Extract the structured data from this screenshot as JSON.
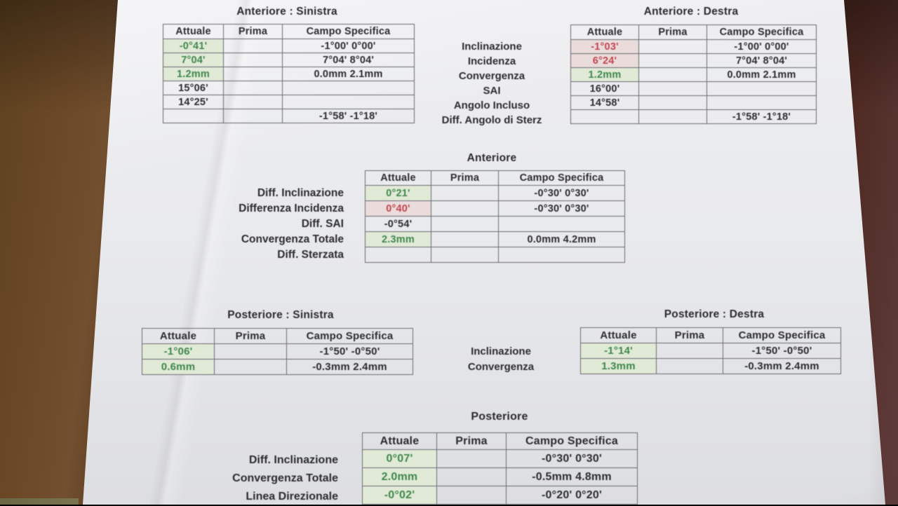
{
  "colors": {
    "good_green": "#40874c",
    "bad_red": "#c2454f",
    "good_cell_bg": "#e0ead7",
    "bad_cell_bg": "#eadcda",
    "ink": "#2c2c30",
    "table_border": "#6a6a70"
  },
  "headers": {
    "attuale": "Attuale",
    "prima": "Prima",
    "campo_specifica": "Campo Specifica"
  },
  "sections": {
    "front_left": {
      "title": "Anteriore : Sinistra",
      "rows": [
        {
          "attuale": "-0°41'",
          "prima": "",
          "campo": "-1°00' 0°00'"
        },
        {
          "attuale": "7°04'",
          "prima": "",
          "campo": "7°04' 8°04'"
        },
        {
          "attuale": "1.2mm",
          "prima": "",
          "campo": "0.0mm 2.1mm"
        },
        {
          "attuale": "15°06'",
          "prima": "",
          "campo": ""
        },
        {
          "attuale": "14°25'",
          "prima": "",
          "campo": ""
        },
        {
          "attuale": "",
          "prima": "",
          "campo": "-1°58' -1°18'"
        }
      ]
    },
    "front_labels": [
      "Inclinazione",
      "Incidenza",
      "Convergenza",
      "SAI",
      "Angolo Incluso",
      "Diff. Angolo di Sterz"
    ],
    "front_right": {
      "title": "Anteriore : Destra",
      "rows": [
        {
          "attuale": "-1°03'",
          "prima": "",
          "campo": "-1°00' 0°00'"
        },
        {
          "attuale": "6°24'",
          "prima": "",
          "campo": "7°04' 8°04'"
        },
        {
          "attuale": "1.2mm",
          "prima": "",
          "campo": "0.0mm 2.1mm"
        },
        {
          "attuale": "16°00'",
          "prima": "",
          "campo": ""
        },
        {
          "attuale": "14°58'",
          "prima": "",
          "campo": ""
        },
        {
          "attuale": "",
          "prima": "",
          "campo": "-1°58' -1°18'"
        }
      ]
    },
    "front_center": {
      "title": "Anteriore",
      "labels": [
        "Diff. Inclinazione",
        "Differenza Incidenza",
        "Diff. SAI",
        "Convergenza Totale",
        "Diff. Sterzata"
      ],
      "rows": [
        {
          "attuale": "0°21'",
          "prima": "",
          "campo": "-0°30' 0°30'"
        },
        {
          "attuale": "0°40'",
          "prima": "",
          "campo": "-0°30' 0°30'"
        },
        {
          "attuale": "-0°54'",
          "prima": "",
          "campo": ""
        },
        {
          "attuale": "2.3mm",
          "prima": "",
          "campo": "0.0mm 4.2mm"
        },
        {
          "attuale": "",
          "prima": "",
          "campo": ""
        }
      ]
    },
    "rear_left": {
      "title": "Posteriore : Sinistra",
      "rows": [
        {
          "attuale": "-1°06'",
          "prima": "",
          "campo": "-1°50' -0°50'"
        },
        {
          "attuale": "0.6mm",
          "prima": "",
          "campo": "-0.3mm 2.4mm"
        }
      ]
    },
    "rear_labels": [
      "Inclinazione",
      "Convergenza"
    ],
    "rear_right": {
      "title": "Posteriore : Destra",
      "rows": [
        {
          "attuale": "-1°14'",
          "prima": "",
          "campo": "-1°50' -0°50'"
        },
        {
          "attuale": "1.3mm",
          "prima": "",
          "campo": "-0.3mm 2.4mm"
        }
      ]
    },
    "rear_center": {
      "title": "Posteriore",
      "labels": [
        "Diff. Inclinazione",
        "Convergenza Totale",
        "Linea Direzionale"
      ],
      "rows": [
        {
          "attuale": "0°07'",
          "prima": "",
          "campo": "-0°30' 0°30'"
        },
        {
          "attuale": "2.0mm",
          "prima": "",
          "campo": "-0.5mm 4.8mm"
        },
        {
          "attuale": "-0°02'",
          "prima": "",
          "campo": "-0°20' 0°20'"
        }
      ]
    }
  }
}
